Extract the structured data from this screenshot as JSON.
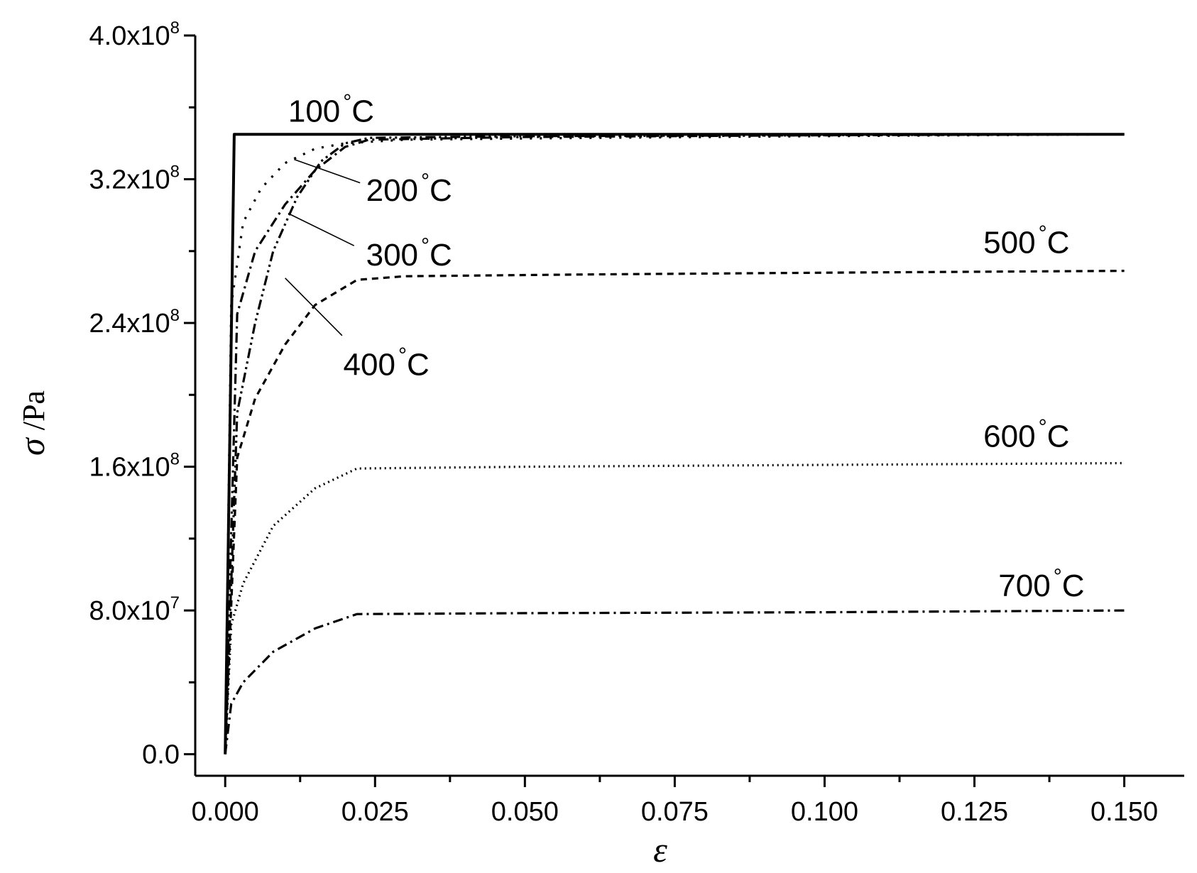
{
  "chart_data": {
    "type": "line",
    "xlabel": "ε",
    "ylabel": "σ",
    "ylabel_unit": " /Pa",
    "xlim": [
      -0.005,
      0.16
    ],
    "ylim": [
      -12000000.0,
      400000000.0
    ],
    "xticks": [
      {
        "value": 0.0,
        "label": "0.000"
      },
      {
        "value": 0.025,
        "label": "0.025"
      },
      {
        "value": 0.05,
        "label": "0.050"
      },
      {
        "value": 0.075,
        "label": "0.075"
      },
      {
        "value": 0.1,
        "label": "0.100"
      },
      {
        "value": 0.125,
        "label": "0.125"
      },
      {
        "value": 0.15,
        "label": "0.150"
      }
    ],
    "xminor": [
      0.0125,
      0.0375,
      0.0625,
      0.0875,
      0.1125,
      0.1375
    ],
    "yticks": [
      {
        "value": 0,
        "label": "0.0",
        "mantissa": "",
        "exp": ""
      },
      {
        "value": 80000000,
        "label": "8.0x10^7",
        "mantissa": "8.0x10",
        "exp": "7"
      },
      {
        "value": 160000000,
        "label": "1.6x10^8",
        "mantissa": "1.6x10",
        "exp": "8"
      },
      {
        "value": 240000000,
        "label": "2.4x10^8",
        "mantissa": "2.4x10",
        "exp": "8"
      },
      {
        "value": 320000000,
        "label": "3.2x10^8",
        "mantissa": "3.2x10",
        "exp": "8"
      },
      {
        "value": 400000000,
        "label": "4.0x10^8",
        "mantissa": "4.0x10",
        "exp": "8"
      }
    ],
    "yminor": [
      40000000,
      120000000,
      200000000,
      280000000,
      360000000
    ],
    "grid": false,
    "series": [
      {
        "name": "100°C",
        "style": "solid",
        "x": [
          0.0,
          0.0015,
          0.15
        ],
        "y": [
          0,
          345000000,
          345000000
        ]
      },
      {
        "name": "200°C",
        "style": "dotted-sparse",
        "x": [
          0.0,
          0.001,
          0.003,
          0.006,
          0.01,
          0.015,
          0.02,
          0.03,
          0.06,
          0.1,
          0.15
        ],
        "y": [
          0,
          250000000,
          296000000,
          315000000,
          329000000,
          337000000,
          340000000,
          342000000,
          343000000,
          344000000,
          345000000
        ]
      },
      {
        "name": "300°C",
        "style": "dash-dot",
        "x": [
          0.0,
          0.002,
          0.005,
          0.01,
          0.015,
          0.02,
          0.024,
          0.05,
          0.1,
          0.15
        ],
        "y": [
          0,
          245000000,
          280000000,
          306000000,
          325000000,
          338000000,
          342000000,
          343500000,
          344500000,
          345000000
        ]
      },
      {
        "name": "400°C",
        "style": "dash-dot-dot",
        "x": [
          0.0,
          0.002,
          0.005,
          0.008,
          0.012,
          0.016,
          0.02,
          0.024,
          0.05,
          0.1,
          0.15
        ],
        "y": [
          0,
          190000000,
          240000000,
          280000000,
          310000000,
          330000000,
          340000000,
          343000000,
          344000000,
          344500000,
          345000000
        ]
      },
      {
        "name": "500°C",
        "style": "dashed",
        "x": [
          0.0,
          0.002,
          0.005,
          0.01,
          0.015,
          0.022,
          0.03,
          0.06,
          0.1,
          0.15
        ],
        "y": [
          0,
          165000000,
          198000000,
          228000000,
          250000000,
          264000000,
          266000000,
          267000000,
          268000000,
          269000000
        ]
      },
      {
        "name": "600°C",
        "style": "dotted",
        "x": [
          0.0,
          0.001,
          0.003,
          0.008,
          0.015,
          0.022,
          0.05,
          0.1,
          0.15
        ],
        "y": [
          0,
          72000000,
          95000000,
          127000000,
          148000000,
          159000000,
          160000000,
          161000000,
          162000000
        ]
      },
      {
        "name": "700°C",
        "style": "dash-dot",
        "x": [
          0.0,
          0.001,
          0.003,
          0.008,
          0.015,
          0.022,
          0.05,
          0.1,
          0.15
        ],
        "y": [
          0,
          28000000,
          40000000,
          57000000,
          70000000,
          78000000,
          78500000,
          79000000,
          80000000
        ]
      }
    ],
    "annotations": [
      {
        "series": "100°C",
        "text": "100",
        "unit": "C",
        "lx": 0.0105,
        "ly": 352000000
      },
      {
        "series": "200°C",
        "text": "200",
        "unit": "C",
        "lx": 0.0235,
        "ly": 308000000,
        "leader": [
          0.0115,
          331000000,
          0.0225,
          318000000
        ]
      },
      {
        "series": "300°C",
        "text": "300",
        "unit": "C",
        "lx": 0.0235,
        "ly": 272000000,
        "leader": [
          0.0105,
          301000000,
          0.0215,
          283000000
        ]
      },
      {
        "series": "400°C",
        "text": "400",
        "unit": "C",
        "lx": 0.0197,
        "ly": 211000000,
        "leader": [
          0.01,
          265000000,
          0.0195,
          233000000
        ]
      },
      {
        "series": "500°C",
        "text": "500",
        "unit": "C",
        "lx": 0.1265,
        "ly": 279000000
      },
      {
        "series": "600°C",
        "text": "600",
        "unit": "C",
        "lx": 0.1265,
        "ly": 171000000
      },
      {
        "series": "700°C",
        "text": "700",
        "unit": "C",
        "lx": 0.129,
        "ly": 88000000
      }
    ]
  }
}
